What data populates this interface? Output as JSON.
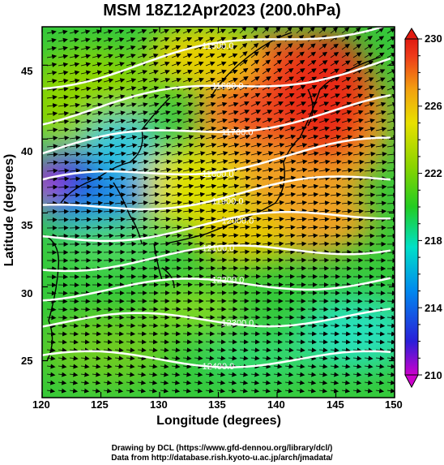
{
  "title": "MSM 18Z12Apr2023 (200.0hPa)",
  "x_axis": {
    "title": "Longitude (degrees)",
    "ticks": [
      "120",
      "125",
      "130",
      "135",
      "140",
      "145",
      "150"
    ],
    "range": [
      120,
      150
    ]
  },
  "y_axis": {
    "title": "Latitude (degrees)",
    "ticks": [
      "25",
      "30",
      "35",
      "40",
      "45"
    ],
    "range": [
      22.5,
      47.6
    ]
  },
  "colorbar": {
    "ticks": [
      "210",
      "214",
      "218",
      "222",
      "226",
      "230"
    ],
    "range": [
      210,
      230
    ]
  },
  "contours": [
    {
      "label": "11500.0",
      "lat_at_135": 46.0
    },
    {
      "label": "11600.0",
      "lat_at_135": 43.4
    },
    {
      "label": "11700.0",
      "lat_at_135": 40.8
    },
    {
      "label": "11800.0",
      "lat_at_135": 38.3
    },
    {
      "label": "11900.0",
      "lat_at_135": 36.2
    },
    {
      "label": "12000.0",
      "lat_at_135": 34.2
    },
    {
      "label": "12100.0",
      "lat_at_135": 32.2
    },
    {
      "label": "12200.0",
      "lat_at_135": 30.1
    },
    {
      "label": "12300.0",
      "lat_at_135": 27.8
    },
    {
      "label": "12400.0",
      "lat_at_135": 25.1
    }
  ],
  "credit": {
    "line1": "Drawing by DCL (https://www.gfd-dennou.org/library/dcl/)",
    "line2": "Data from http://database.rish.kyoto-u.ac.jp/arch/jmadata/"
  }
}
